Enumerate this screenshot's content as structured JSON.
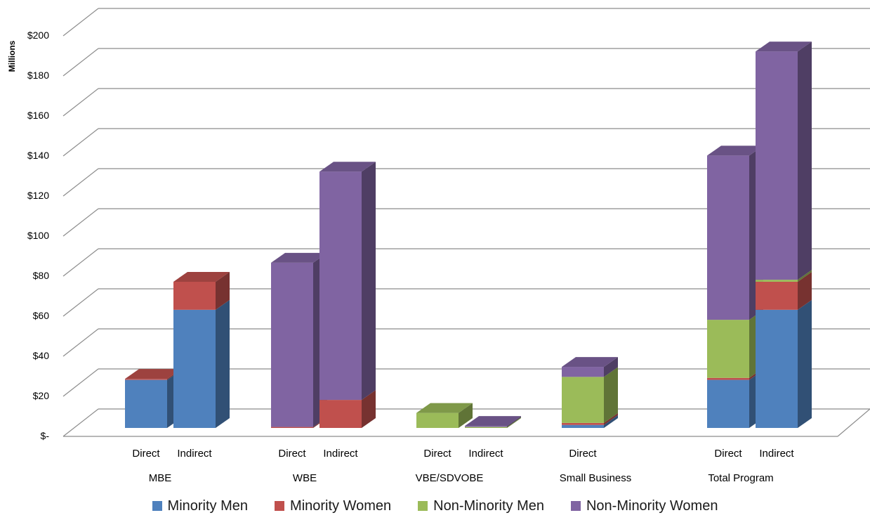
{
  "chart_data": {
    "type": "bar",
    "stacked": true,
    "three_d": true,
    "ylabel": "Millions",
    "ylim": [
      0,
      200
    ],
    "y_ticks": [
      "$-",
      "$20",
      "$40",
      "$60",
      "$80",
      "$100",
      "$120",
      "$140",
      "$160",
      "$180",
      "$200"
    ],
    "grid": true,
    "legend_position": "bottom",
    "groups": [
      {
        "name": "MBE",
        "bars": [
          "Direct",
          "Indirect"
        ]
      },
      {
        "name": "WBE",
        "bars": [
          "Direct",
          "Indirect"
        ]
      },
      {
        "name": "VBE/SDVOBE",
        "bars": [
          "Direct",
          "Indirect"
        ]
      },
      {
        "name": "Small Business",
        "bars": [
          "Direct"
        ]
      },
      {
        "name": "Total Program",
        "bars": [
          "Direct",
          "Indirect"
        ]
      }
    ],
    "categories": [
      "MBE Direct",
      "MBE Indirect",
      "WBE Direct",
      "WBE Indirect",
      "VBE/SDVOBE Direct",
      "VBE/SDVOBE Indirect",
      "Small Business Direct",
      "Total Program Direct",
      "Total Program Indirect"
    ],
    "series": [
      {
        "name": "Minority Men",
        "color": "#4f81bd",
        "values": [
          24,
          59,
          0,
          0,
          0,
          0,
          1.5,
          24,
          59
        ]
      },
      {
        "name": "Minority Women",
        "color": "#c0504d",
        "values": [
          0.5,
          14,
          0.5,
          14,
          0,
          0,
          1,
          1,
          14
        ]
      },
      {
        "name": "Non-Minority Men",
        "color": "#9bbb59",
        "values": [
          0,
          0,
          0,
          0,
          7.5,
          0.5,
          23,
          29,
          1
        ]
      },
      {
        "name": "Non-Minority Women",
        "color": "#8064a2",
        "values": [
          0,
          0,
          82,
          114,
          0,
          0.5,
          5,
          82,
          114
        ]
      }
    ]
  }
}
